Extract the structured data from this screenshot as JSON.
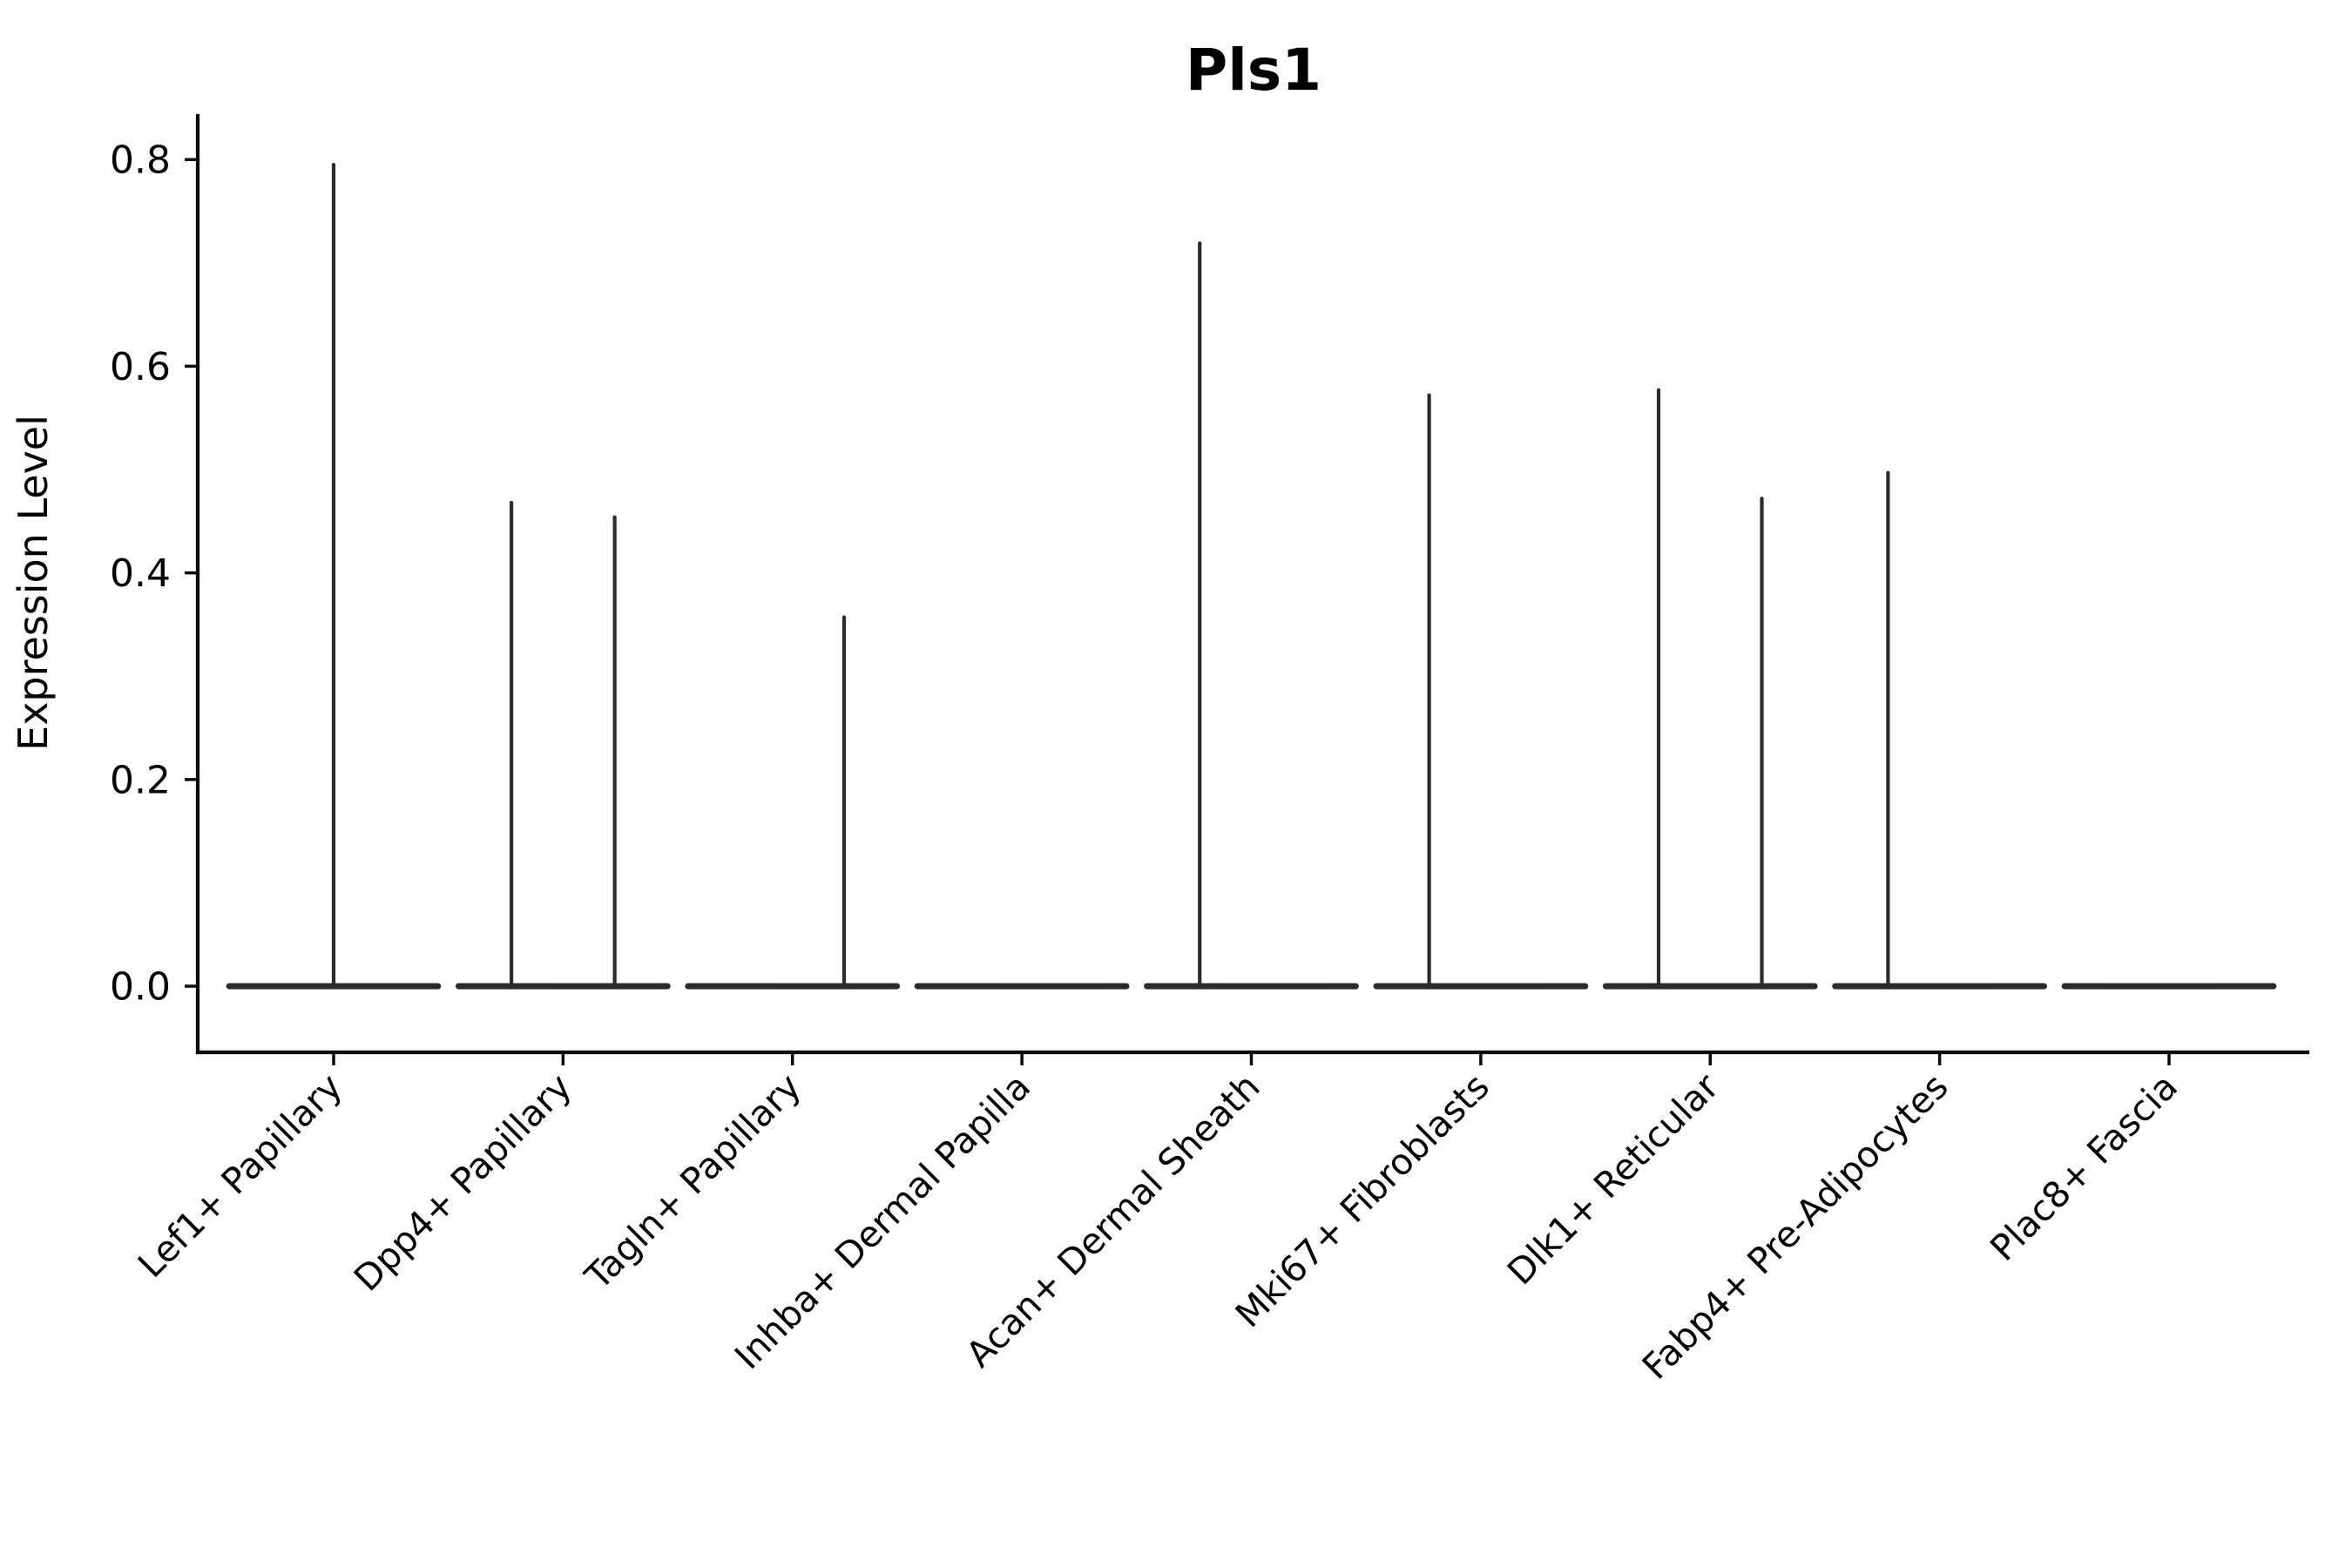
{
  "title": "Pls1",
  "chart_data": {
    "type": "violin",
    "title": "Pls1",
    "xlabel": "",
    "ylabel": "Expression Level",
    "ylim": [
      -0.064,
      0.844
    ],
    "grid": false,
    "legend": null,
    "line_color": "#2b2b2b",
    "spine_color": "#0a0a0a",
    "background_color": "#ffffff",
    "yticks": [
      {
        "label": "0.0",
        "value": 0.0
      },
      {
        "label": "0.2",
        "value": 0.2
      },
      {
        "label": "0.4",
        "value": 0.4
      },
      {
        "label": "0.6",
        "value": 0.6
      },
      {
        "label": "0.8",
        "value": 0.8
      }
    ],
    "x_tick_rotation_deg": 45,
    "body_width_frac": 0.91,
    "categories": [
      {
        "label": "Lef1+ Papillary",
        "baseline_value": 0,
        "spikes": [
          {
            "offset_frac": 0.0,
            "max": 0.795
          }
        ]
      },
      {
        "label": "Dpp4+ Papillary",
        "baseline_value": 0,
        "spikes": [
          {
            "offset_frac": -0.225,
            "max": 0.468
          },
          {
            "offset_frac": 0.225,
            "max": 0.454
          }
        ]
      },
      {
        "label": "Tagln+ Papillary",
        "baseline_value": 0,
        "spikes": [
          {
            "offset_frac": 0.225,
            "max": 0.357
          }
        ]
      },
      {
        "label": "Inhba+ Dermal Papilla",
        "baseline_value": 0,
        "spikes": []
      },
      {
        "label": "Acan+ Dermal Sheath",
        "baseline_value": 0,
        "spikes": [
          {
            "offset_frac": -0.225,
            "max": 0.719
          }
        ]
      },
      {
        "label": "Mki67+ Fibroblasts",
        "baseline_value": 0,
        "spikes": [
          {
            "offset_frac": -0.225,
            "max": 0.572
          }
        ]
      },
      {
        "label": "Dlk1+ Reticular",
        "baseline_value": 0,
        "spikes": [
          {
            "offset_frac": -0.225,
            "max": 0.577
          },
          {
            "offset_frac": 0.225,
            "max": 0.472
          }
        ]
      },
      {
        "label": "Fabp4+ Pre-Adipocytes",
        "baseline_value": 0,
        "spikes": [
          {
            "offset_frac": -0.225,
            "max": 0.497
          }
        ]
      },
      {
        "label": "Plac8+ Fascia",
        "baseline_value": 0,
        "spikes": []
      }
    ]
  }
}
